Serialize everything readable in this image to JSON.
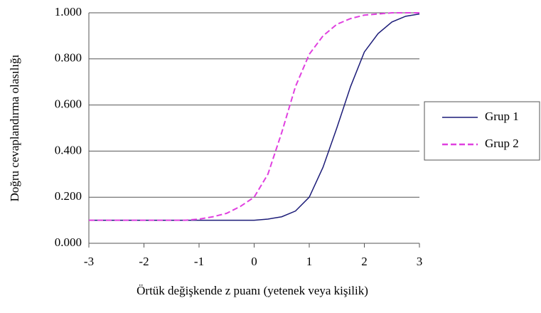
{
  "chart_data": {
    "type": "line",
    "xlabel": "Örtük değişkende z puanı (yetenek veya kişilik)",
    "ylabel": "Doğru cevaplandırma olasılığı",
    "x": [
      -3,
      -2.75,
      -2.5,
      -2.25,
      -2,
      -1.75,
      -1.5,
      -1.25,
      -1,
      -0.75,
      -0.5,
      -0.25,
      0,
      0.25,
      0.5,
      0.75,
      1,
      1.25,
      1.5,
      1.75,
      2,
      2.25,
      2.5,
      2.75,
      3
    ],
    "series": [
      {
        "name": "Grup 1",
        "color": "#1c1c78",
        "linestyle": "solid",
        "values": [
          0.1,
          0.1,
          0.1,
          0.1,
          0.1,
          0.1,
          0.1,
          0.1,
          0.1,
          0.1,
          0.1,
          0.1,
          0.1,
          0.105,
          0.115,
          0.14,
          0.2,
          0.33,
          0.5,
          0.68,
          0.83,
          0.91,
          0.96,
          0.985,
          0.995
        ]
      },
      {
        "name": "Grup 2",
        "color": "#e040e0",
        "linestyle": "dashed",
        "values": [
          0.1,
          0.1,
          0.1,
          0.1,
          0.1,
          0.1,
          0.1,
          0.1,
          0.105,
          0.115,
          0.13,
          0.16,
          0.2,
          0.3,
          0.48,
          0.68,
          0.82,
          0.9,
          0.95,
          0.975,
          0.99,
          0.995,
          1,
          1,
          1
        ]
      }
    ],
    "xlim": [
      -3,
      3
    ],
    "xticks": [
      -3,
      -2,
      -1,
      0,
      1,
      2,
      3
    ],
    "ylim": [
      0,
      1
    ],
    "yticks": [
      {
        "value": 0,
        "label": "0.000"
      },
      {
        "value": 0.2,
        "label": "0.200"
      },
      {
        "value": 0.4,
        "label": "0.400"
      },
      {
        "value": 0.6,
        "label": "0.600"
      },
      {
        "value": 0.8,
        "label": "0.800"
      },
      {
        "value": 1,
        "label": "1.000"
      }
    ],
    "grid": true,
    "legend": "right"
  }
}
